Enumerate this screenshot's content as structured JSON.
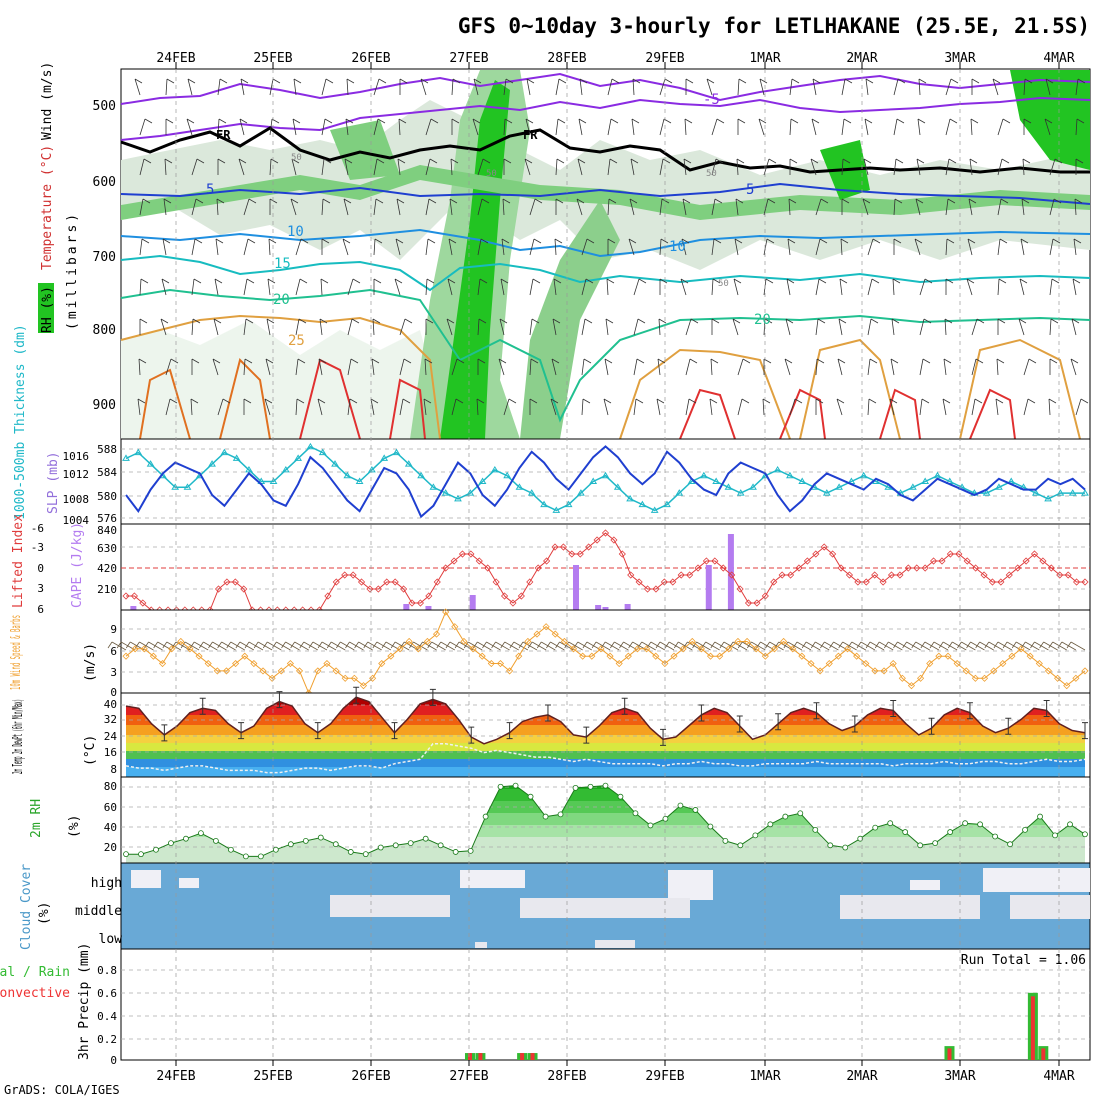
{
  "title": "GFS 0~10day 3-hourly for LETLHAKANE (25.5E, 21.5S)",
  "credit": "GrADS: COLA/IGES",
  "date_labels": [
    "24FEB",
    "25FEB",
    "26FEB",
    "27FEB",
    "28FEB",
    "29FEB",
    "1MAR",
    "2MAR",
    "3MAR",
    "4MAR"
  ],
  "colors": {
    "rh_green": "#22c422",
    "temp_purple": "#8a2be2",
    "fr_black": "#000000",
    "thickness_cyan": "#1fb8c8",
    "slp_blue": "#1f3fd0",
    "li_red": "#e03c3c",
    "cape_violet": "#b47cf0",
    "wind10_orange": "#f0a030",
    "rh2m_green": "#2aa52a",
    "cloud_blue": "#69a9d6",
    "precip_green": "#33bb33",
    "precip_red": "#ee3333"
  },
  "panels": {
    "upper": {
      "labels": [
        "RH (%)",
        "Temperature (°C)",
        "Wind (m/s)"
      ],
      "ylabel": "(millibars)",
      "yticks": [
        "500",
        "600",
        "700",
        "800",
        "900"
      ],
      "contour_labels": [
        "-5",
        "FR",
        "FR",
        "5",
        "5",
        "10",
        "10",
        "15",
        "20",
        "20",
        "25",
        "50",
        "50",
        "50",
        "50"
      ]
    },
    "slp": {
      "label_left": "1000-500mb Thickness (dm)",
      "label_right": "SLP (mb)",
      "left_ticks": [
        "588",
        "584",
        "580",
        "576"
      ],
      "right_ticks": [
        "1016",
        "1012",
        "1008",
        "1004"
      ]
    },
    "cape": {
      "label_left": "Lifted Index",
      "label_right": "CAPE (J/kg)",
      "left_ticks": [
        "-6",
        "-3",
        "0",
        "3",
        "6"
      ],
      "right_ticks": [
        "840",
        "630",
        "420",
        "210"
      ]
    },
    "wind10": {
      "label": "10m Wind Speed & Barbs",
      "unit": "(m/s)",
      "ticks": [
        "9",
        "6",
        "3",
        "0"
      ]
    },
    "temp2m": {
      "label": "2m Temp 2m DewPt (6hr Min/Max)",
      "unit": "(°C)",
      "ticks": [
        "40",
        "32",
        "24",
        "16",
        "8"
      ]
    },
    "rh2m": {
      "label": "2m RH",
      "unit": "(%)",
      "ticks": [
        "80",
        "60",
        "40",
        "20"
      ]
    },
    "cloud": {
      "label": "Cloud Cover",
      "unit": "(%)",
      "levels": [
        "high",
        "middle",
        "low"
      ]
    },
    "precip": {
      "label": "3hr Precip (mm)",
      "label_total": "Total / Rain",
      "label_conv": "Convective",
      "run_total": "Run Total = 1.06",
      "ticks": [
        "0.8",
        "0.6",
        "0.4",
        "0.2",
        "0"
      ]
    }
  },
  "chart_data": [
    {
      "type": "line",
      "title": "1000-500mb Thickness (dm) and SLP (mb)",
      "series": [
        {
          "name": "SLP (mb)",
          "axis": "right",
          "values": [
            1008,
            1005,
            1009,
            1012,
            1014,
            1013,
            1012,
            1008,
            1006,
            1009,
            1012,
            1010,
            1007,
            1006,
            1010,
            1015,
            1013,
            1010,
            1007,
            1005,
            1009,
            1013,
            1012,
            1009,
            1004,
            1006,
            1010,
            1014,
            1012,
            1008,
            1006,
            1009,
            1013,
            1016,
            1014,
            1011,
            1009,
            1012,
            1015,
            1017,
            1015,
            1012,
            1010,
            1012,
            1016,
            1014,
            1011,
            1009,
            1008,
            1012,
            1014,
            1013,
            1012,
            1008,
            1005,
            1007,
            1010,
            1012,
            1011,
            1010,
            1009,
            1011,
            1010,
            1008,
            1007,
            1009,
            1011,
            1010,
            1009,
            1008,
            1009,
            1011,
            1010,
            1009,
            1009,
            1011,
            1010,
            1011,
            1009
          ]
        },
        {
          "name": "1000-500mb Thickness (dm)",
          "axis": "left",
          "values": [
            586,
            587,
            585,
            583,
            581,
            581,
            583,
            585,
            587,
            586,
            584,
            582,
            582,
            584,
            586,
            588,
            587,
            585,
            583,
            582,
            584,
            586,
            587,
            585,
            583,
            581,
            580,
            579,
            580,
            582,
            584,
            583,
            581,
            580,
            578,
            577,
            578,
            580,
            582,
            583,
            581,
            579,
            578,
            577,
            578,
            580,
            582,
            583,
            582,
            581,
            580,
            581,
            583,
            584,
            583,
            582,
            581,
            580,
            581,
            582,
            583,
            582,
            581,
            580,
            581,
            582,
            583,
            582,
            581,
            580,
            580,
            581,
            582,
            581,
            580,
            579,
            580,
            580,
            580
          ]
        }
      ],
      "ylim_left": [
        575,
        589
      ],
      "ylim_right": [
        1003,
        1018
      ]
    },
    {
      "type": "bar",
      "title": "Lifted Index and CAPE",
      "series": [
        {
          "name": "CAPE (J/kg)",
          "values": [
            0,
            40,
            0,
            0,
            0,
            0,
            0,
            0,
            0,
            0,
            0,
            0,
            0,
            0,
            0,
            0,
            0,
            0,
            0,
            0,
            0,
            0,
            0,
            0,
            0,
            0,
            0,
            0,
            0,
            0,
            0,
            0,
            0,
            0,
            0,
            0,
            0,
            0,
            60,
            0,
            0,
            40,
            0,
            0,
            0,
            0,
            0,
            150,
            0,
            0,
            0,
            0,
            0,
            0,
            0,
            0,
            0,
            0,
            0,
            0,
            0,
            450,
            0,
            0,
            50,
            30,
            0,
            0,
            60,
            0,
            0,
            0,
            0,
            0,
            0,
            0,
            0,
            0,
            0,
            450,
            0,
            0,
            760,
            0,
            0,
            0,
            0,
            0,
            0,
            0,
            0,
            0,
            0,
            0,
            0,
            0,
            0,
            0,
            0,
            0,
            0,
            0,
            0,
            0,
            0,
            0,
            0,
            0,
            0,
            0,
            0,
            0,
            0,
            0,
            0,
            0,
            0,
            0,
            0,
            0,
            0,
            0,
            0,
            0,
            0,
            0,
            0,
            0,
            0,
            0,
            0
          ]
        },
        {
          "name": "Lifted Index",
          "values": [
            4,
            4,
            5,
            6,
            6,
            6,
            6,
            6,
            6,
            6,
            6,
            3,
            2,
            2,
            3,
            6,
            6,
            6,
            6,
            6,
            6,
            6,
            6,
            6,
            4,
            2,
            1,
            1,
            2,
            3,
            3,
            2,
            2,
            3,
            5,
            5,
            4,
            2,
            0,
            -1,
            -2,
            -2,
            -1,
            0,
            2,
            4,
            5,
            4,
            2,
            0,
            -1,
            -3,
            -3,
            -2,
            -2,
            -3,
            -4,
            -5,
            -4,
            -2,
            1,
            2,
            3,
            3,
            2,
            2,
            1,
            1,
            0,
            -1,
            -1,
            0,
            1,
            3,
            5,
            5,
            4,
            2,
            1,
            1,
            0,
            -1,
            -2,
            -3,
            -2,
            0,
            1,
            2,
            2,
            1,
            2,
            1,
            1,
            0,
            0,
            0,
            -1,
            -1,
            -2,
            -2,
            -1,
            0,
            1,
            2,
            2,
            1,
            0,
            -1,
            -2,
            -1,
            0,
            1,
            1,
            2,
            2
          ]
        }
      ],
      "ylim_left": [
        6,
        -6
      ],
      "ylim_right": [
        0,
        840
      ]
    },
    {
      "type": "line",
      "title": "10m Wind Speed & Barbs (m/s)",
      "series": [
        {
          "name": "10m Wind Speed",
          "values": [
            5,
            6,
            6,
            5,
            4,
            6,
            7,
            6,
            5,
            4,
            3,
            3,
            4,
            5,
            4,
            3,
            2,
            3,
            4,
            3,
            0,
            3,
            4,
            3,
            2,
            2,
            1,
            2,
            4,
            5,
            6,
            7,
            6,
            7,
            8,
            11,
            9,
            7,
            6,
            5,
            4,
            4,
            3,
            5,
            7,
            8,
            9,
            8,
            7,
            6,
            5,
            5,
            6,
            5,
            4,
            5,
            6,
            6,
            5,
            4,
            5,
            6,
            7,
            6,
            5,
            5,
            6,
            7,
            7,
            6,
            5,
            6,
            7,
            6,
            5,
            4,
            3,
            4,
            5,
            6,
            5,
            4,
            3,
            3,
            4,
            2,
            1,
            2,
            4,
            5,
            5,
            4,
            3,
            2,
            2,
            3,
            4,
            5,
            6,
            5,
            4,
            3,
            2,
            1,
            2,
            3
          ]
        }
      ],
      "ylim": [
        0,
        11
      ]
    },
    {
      "type": "area",
      "title": "2m Temp / 2m DewPt (6hr Min/Max) (°C)",
      "series": [
        {
          "name": "2m Temp",
          "values": [
            36,
            35,
            28,
            23,
            27,
            33,
            35,
            34,
            28,
            24,
            27,
            35,
            38,
            36,
            28,
            24,
            28,
            35,
            40,
            38,
            31,
            24,
            30,
            37,
            39,
            37,
            30,
            22,
            19,
            21,
            24,
            29,
            31,
            32,
            29,
            23,
            22,
            27,
            33,
            35,
            33,
            26,
            21,
            22,
            27,
            32,
            35,
            33,
            27,
            21,
            23,
            28,
            33,
            35,
            33,
            28,
            25,
            27,
            32,
            35,
            34,
            28,
            23,
            26,
            32,
            35,
            33,
            27,
            24,
            26,
            30,
            35,
            34,
            28,
            25,
            24
          ]
        },
        {
          "name": "2m DewPt",
          "values": [
            9,
            8,
            8,
            7,
            8,
            9,
            9,
            8,
            7,
            7,
            7,
            6,
            6,
            7,
            8,
            8,
            7,
            8,
            9,
            9,
            8,
            10,
            11,
            12,
            19,
            19,
            18,
            17,
            15,
            16,
            15,
            14,
            13,
            13,
            12,
            11,
            12,
            11,
            10,
            10,
            10,
            10,
            9,
            10,
            10,
            11,
            10,
            10,
            9,
            9,
            10,
            10,
            10,
            10,
            11,
            10,
            10,
            10,
            10,
            10,
            9,
            10,
            10,
            10,
            11,
            10,
            10,
            11,
            11,
            10,
            10,
            11,
            12,
            11,
            11,
            12
          ]
        }
      ],
      "ylim": [
        4,
        41
      ]
    },
    {
      "type": "area",
      "title": "2m RH (%)",
      "series": [
        {
          "name": "2m RH",
          "values": [
            18,
            18,
            22,
            28,
            32,
            37,
            30,
            22,
            16,
            16,
            22,
            27,
            30,
            33,
            27,
            20,
            18,
            24,
            26,
            28,
            32,
            26,
            20,
            21,
            52,
            79,
            80,
            70,
            52,
            54,
            78,
            79,
            80,
            70,
            55,
            44,
            50,
            62,
            58,
            43,
            30,
            26,
            35,
            45,
            52,
            55,
            40,
            26,
            24,
            32,
            42,
            46,
            38,
            26,
            28,
            38,
            46,
            45,
            34,
            27,
            40,
            52,
            35,
            45,
            36
          ]
        }
      ],
      "ylim": [
        10,
        86
      ]
    },
    {
      "type": "bar",
      "title": "3hr Precip (mm)",
      "series": [
        {
          "name": "Total / Rain",
          "values": [
            0,
            0,
            0,
            0,
            0,
            0,
            0,
            0,
            0,
            0,
            0,
            0,
            0,
            0,
            0,
            0,
            0,
            0,
            0,
            0,
            0,
            0,
            0,
            0,
            0,
            0,
            0,
            0,
            0,
            0,
            0,
            0,
            0,
            0.06,
            0.06,
            0,
            0,
            0,
            0.06,
            0.06,
            0,
            0,
            0,
            0,
            0,
            0,
            0,
            0,
            0,
            0,
            0,
            0,
            0,
            0,
            0,
            0,
            0,
            0,
            0,
            0,
            0,
            0,
            0,
            0,
            0,
            0,
            0,
            0,
            0,
            0,
            0,
            0,
            0,
            0,
            0,
            0,
            0,
            0,
            0,
            0.12,
            0,
            0,
            0,
            0,
            0,
            0,
            0,
            0.58,
            0.12,
            0,
            0,
            0,
            0
          ]
        },
        {
          "name": "Convective",
          "values": [
            0,
            0,
            0,
            0,
            0,
            0,
            0,
            0,
            0,
            0,
            0,
            0,
            0,
            0,
            0,
            0,
            0,
            0,
            0,
            0,
            0,
            0,
            0,
            0,
            0,
            0,
            0,
            0,
            0,
            0,
            0,
            0,
            0,
            0.06,
            0.06,
            0,
            0,
            0,
            0.06,
            0.06,
            0,
            0,
            0,
            0,
            0,
            0,
            0,
            0,
            0,
            0,
            0,
            0,
            0,
            0,
            0,
            0,
            0,
            0,
            0,
            0,
            0,
            0,
            0,
            0,
            0,
            0,
            0,
            0,
            0,
            0,
            0,
            0,
            0,
            0,
            0,
            0,
            0,
            0,
            0,
            0.1,
            0,
            0,
            0,
            0,
            0,
            0,
            0,
            0.55,
            0.1,
            0,
            0,
            0,
            0
          ]
        }
      ],
      "ylim": [
        0,
        0.95
      ]
    }
  ]
}
